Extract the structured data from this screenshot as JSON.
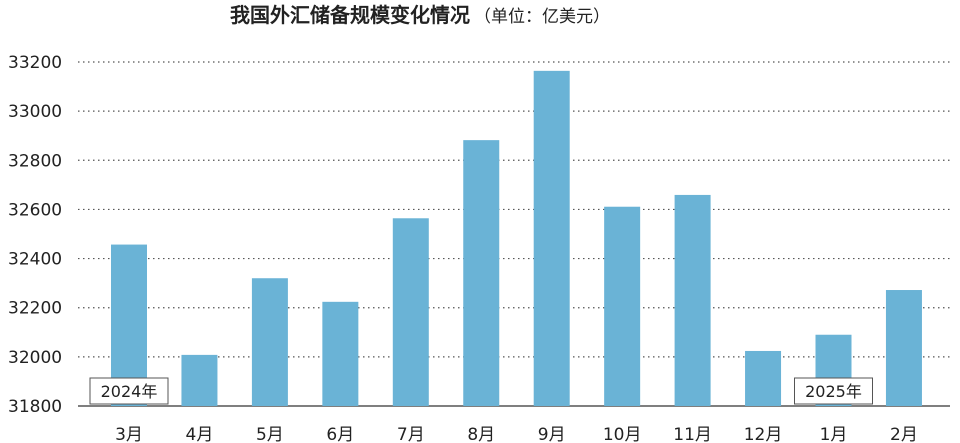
{
  "chart_data": {
    "type": "bar",
    "title": "我国外汇储备规模变化情况",
    "unit": "（单位：亿美元）",
    "categories": [
      "3月",
      "4月",
      "5月",
      "6月",
      "7月",
      "8月",
      "9月",
      "10月",
      "11月",
      "12月",
      "1月",
      "2月"
    ],
    "values": [
      32457,
      32008,
      32320,
      32224,
      32564,
      32882,
      33164,
      32611,
      32659,
      32024,
      32090,
      32272
    ],
    "ylim": [
      31800,
      33200
    ],
    "yticks": [
      31800,
      32000,
      32200,
      32400,
      32600,
      32800,
      33000,
      33200
    ],
    "grid": true,
    "bar_color": "#6ab3d6",
    "year_labels": [
      {
        "label": "2024年",
        "category_index": 0
      },
      {
        "label": "2025年",
        "category_index": 10
      }
    ]
  }
}
